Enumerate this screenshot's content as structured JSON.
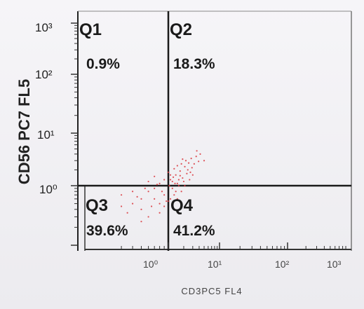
{
  "chart_data": {
    "type": "scatter",
    "title": "",
    "xlabel": "CD3PC5 FL4",
    "ylabel": "CD56 PC7 FL5",
    "x_scale": "log",
    "y_scale": "log",
    "xlim": [
      0.1,
      1000
    ],
    "ylim": [
      0.1,
      1000
    ],
    "x_tick_labels": [
      "10⁰",
      "10¹",
      "10²",
      "10³"
    ],
    "y_tick_labels": [
      "10³",
      "10²",
      "10¹",
      "10⁰"
    ],
    "gates": {
      "x": 1,
      "y": 1
    },
    "quadrants": [
      {
        "name": "Q1",
        "percent": "0.9%"
      },
      {
        "name": "Q2",
        "percent": "18.3%"
      },
      {
        "name": "Q3",
        "percent": "39.6%"
      },
      {
        "name": "Q4",
        "percent": "41.2%"
      }
    ],
    "events": [
      [
        0.6,
        0.8
      ],
      [
        0.8,
        1.1
      ],
      [
        0.9,
        0.7
      ],
      [
        1.1,
        1.3
      ],
      [
        1.2,
        0.9
      ],
      [
        1.4,
        1.6
      ],
      [
        1.5,
        1.1
      ],
      [
        1.7,
        1.9
      ],
      [
        1.9,
        1.4
      ],
      [
        2.1,
        2.3
      ],
      [
        2.3,
        1.7
      ],
      [
        2.5,
        2.7
      ],
      [
        1.3,
        2.1
      ],
      [
        1.8,
        2.6
      ],
      [
        2.7,
        1.8
      ],
      [
        0.7,
        1.5
      ],
      [
        1.0,
        1.8
      ],
      [
        0.5,
        0.6
      ],
      [
        0.8,
        0.5
      ],
      [
        1.6,
        1.0
      ],
      [
        2.0,
        1.2
      ],
      [
        2.2,
        3.0
      ],
      [
        2.9,
        2.2
      ],
      [
        3.2,
        2.6
      ],
      [
        1.2,
        1.2
      ],
      [
        1.4,
        0.8
      ],
      [
        0.9,
        1.3
      ],
      [
        1.1,
        0.6
      ],
      [
        0.7,
        0.9
      ],
      [
        1.5,
        2.4
      ],
      [
        2.4,
        2.0
      ],
      [
        1.9,
        3.2
      ],
      [
        3.5,
        3.6
      ],
      [
        3.9,
        2.9
      ],
      [
        0.6,
        1.2
      ],
      [
        0.4,
        0.8
      ],
      [
        0.5,
        0.4
      ],
      [
        0.3,
        0.7
      ],
      [
        0.4,
        0.5
      ],
      [
        0.6,
        0.3
      ],
      [
        0.8,
        0.35
      ],
      [
        0.5,
        0.25
      ],
      [
        0.7,
        0.6
      ],
      [
        0.9,
        0.45
      ],
      [
        1.2,
        0.5
      ],
      [
        1.5,
        0.6
      ],
      [
        1.8,
        0.8
      ],
      [
        0.35,
        0.35
      ],
      [
        0.45,
        0.65
      ],
      [
        0.55,
        0.9
      ],
      [
        1.0,
        0.55
      ],
      [
        1.3,
        0.7
      ],
      [
        1.6,
        1.3
      ],
      [
        2.6,
        1.3
      ],
      [
        3.0,
        1.6
      ],
      [
        2.1,
        1.0
      ],
      [
        1.1,
        1.6
      ],
      [
        0.75,
        1.05
      ],
      [
        1.25,
        1.45
      ],
      [
        1.7,
        1.55
      ],
      [
        2.8,
        3.3
      ],
      [
        4.2,
        4.0
      ],
      [
        5.0,
        3.0
      ],
      [
        3.6,
        4.6
      ],
      [
        0.65,
        0.45
      ],
      [
        0.85,
        0.8
      ],
      [
        1.05,
        1.0
      ],
      [
        0.95,
        0.55
      ],
      [
        1.35,
        1.1
      ],
      [
        0.3,
        0.45
      ]
    ]
  }
}
